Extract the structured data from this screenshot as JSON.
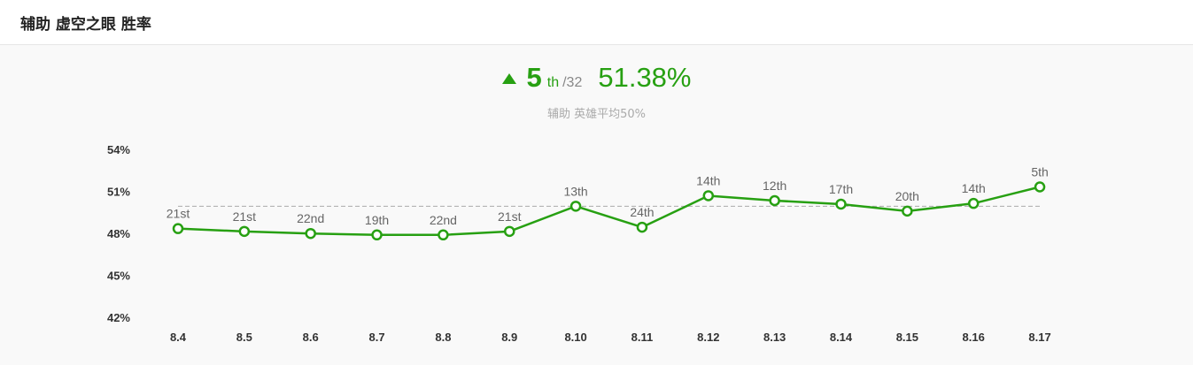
{
  "header": {
    "title": "辅助 虚空之眼 胜率"
  },
  "summary": {
    "rank": "5",
    "rank_suffix": "th",
    "rank_total": "/32",
    "win_rate": "51.38%",
    "subtitle": "辅助 英雄平均50%"
  },
  "colors": {
    "accent": "#27a012",
    "reference_line": "#aaaaaa"
  },
  "chart_data": {
    "type": "line",
    "title": "",
    "xlabel": "",
    "ylabel": "",
    "ylim": [
      42,
      54
    ],
    "yticks": [
      "54%",
      "51%",
      "48%",
      "45%",
      "42%"
    ],
    "ytick_values": [
      54,
      51,
      48,
      45,
      42
    ],
    "grid": false,
    "reference_value": 50,
    "categories": [
      "8.4",
      "8.5",
      "8.6",
      "8.7",
      "8.8",
      "8.9",
      "8.10",
      "8.11",
      "8.12",
      "8.13",
      "8.14",
      "8.15",
      "8.16",
      "8.17"
    ],
    "series": [
      {
        "values": [
          48.4,
          48.2,
          48.05,
          47.95,
          47.95,
          48.2,
          50.0,
          48.5,
          50.75,
          50.4,
          50.15,
          49.65,
          50.2,
          51.38
        ],
        "point_labels": [
          "21st",
          "21st",
          "22nd",
          "19th",
          "22nd",
          "21st",
          "13th",
          "24th",
          "14th",
          "12th",
          "17th",
          "20th",
          "14th",
          "5th"
        ]
      }
    ]
  }
}
